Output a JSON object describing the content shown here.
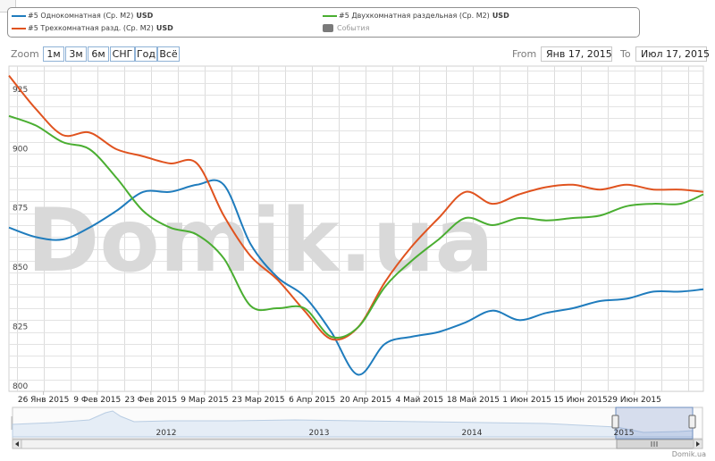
{
  "legend": {
    "items": [
      {
        "label": "#5 Однокомнатная (Ср. М2)",
        "unit": "USD",
        "color": "#1f7cbd"
      },
      {
        "label": "#5 Трехкомнатная разд. (Ср. М2)",
        "unit": "USD",
        "color": "#e0531f"
      },
      {
        "label": "#5 Двухкомнатная раздельная (Ср. М2)",
        "unit": "USD",
        "color": "#4aae31"
      },
      {
        "label": "События",
        "unit": "",
        "color": "#7a7a7a"
      }
    ]
  },
  "zoom": {
    "label": "Zoom",
    "buttons": [
      "1м",
      "3м",
      "6м",
      "СНГ",
      "Год",
      "Всё"
    ]
  },
  "range": {
    "from_label": "From",
    "from_value": "Янв 17, 2015",
    "to_label": "To",
    "to_value": "Июл 17, 2015"
  },
  "watermark": "Domik.ua",
  "credit": "Domik.ua",
  "navigator": {
    "year_labels": [
      "2012",
      "2013",
      "2014",
      "2015"
    ]
  },
  "chart_data": {
    "type": "line",
    "ylim": [
      800,
      937
    ],
    "y_ticks": [
      "925",
      "900",
      "875",
      "850",
      "825",
      "800"
    ],
    "x_tick_labels": [
      "26 Янв 2015",
      "9 Фев 2015",
      "23 Фев 2015",
      "9 Мар 2015",
      "23 Мар 2015",
      "6 Апр 2015",
      "20 Апр 2015",
      "4 Май 2015",
      "18 Май 2015",
      "1 Июн 2015",
      "15 Июн 2015",
      "29 Июн 2015"
    ],
    "x": [
      "2015-01-17",
      "2015-01-24",
      "2015-01-31",
      "2015-02-07",
      "2015-02-14",
      "2015-02-21",
      "2015-02-28",
      "2015-03-07",
      "2015-03-14",
      "2015-03-21",
      "2015-03-28",
      "2015-04-04",
      "2015-04-11",
      "2015-04-18",
      "2015-04-25",
      "2015-05-02",
      "2015-05-09",
      "2015-05-16",
      "2015-05-23",
      "2015-05-30",
      "2015-06-06",
      "2015-06-13",
      "2015-06-20",
      "2015-06-27",
      "2015-07-04",
      "2015-07-11",
      "2015-07-17"
    ],
    "series": [
      {
        "name": "#5 Однокомнатная (Ср. М2)",
        "color": "#1f7cbd",
        "values": [
          869,
          865,
          864,
          869,
          876,
          884,
          884,
          887,
          887,
          862,
          848,
          840,
          825,
          807,
          820,
          823,
          825,
          829,
          834,
          830,
          833,
          835,
          838,
          839,
          842,
          842,
          843
        ]
      },
      {
        "name": "#5 Трехкомнатная разд. (Ср. М2)",
        "color": "#e0531f",
        "values": [
          933,
          919,
          908,
          909,
          902,
          899,
          896,
          896,
          874,
          857,
          847,
          834,
          822,
          827,
          846,
          861,
          873,
          884,
          879,
          883,
          886,
          887,
          885,
          887,
          885,
          885,
          884
        ]
      },
      {
        "name": "#5 Двухкомнатная раздельная (Ср. М2)",
        "color": "#4aae31",
        "values": [
          916,
          912,
          905,
          902,
          890,
          876,
          869,
          866,
          856,
          836,
          835,
          835,
          823,
          827,
          844,
          855,
          864,
          873,
          870,
          873,
          872,
          873,
          874,
          878,
          879,
          879,
          883
        ]
      }
    ],
    "grid": true
  }
}
